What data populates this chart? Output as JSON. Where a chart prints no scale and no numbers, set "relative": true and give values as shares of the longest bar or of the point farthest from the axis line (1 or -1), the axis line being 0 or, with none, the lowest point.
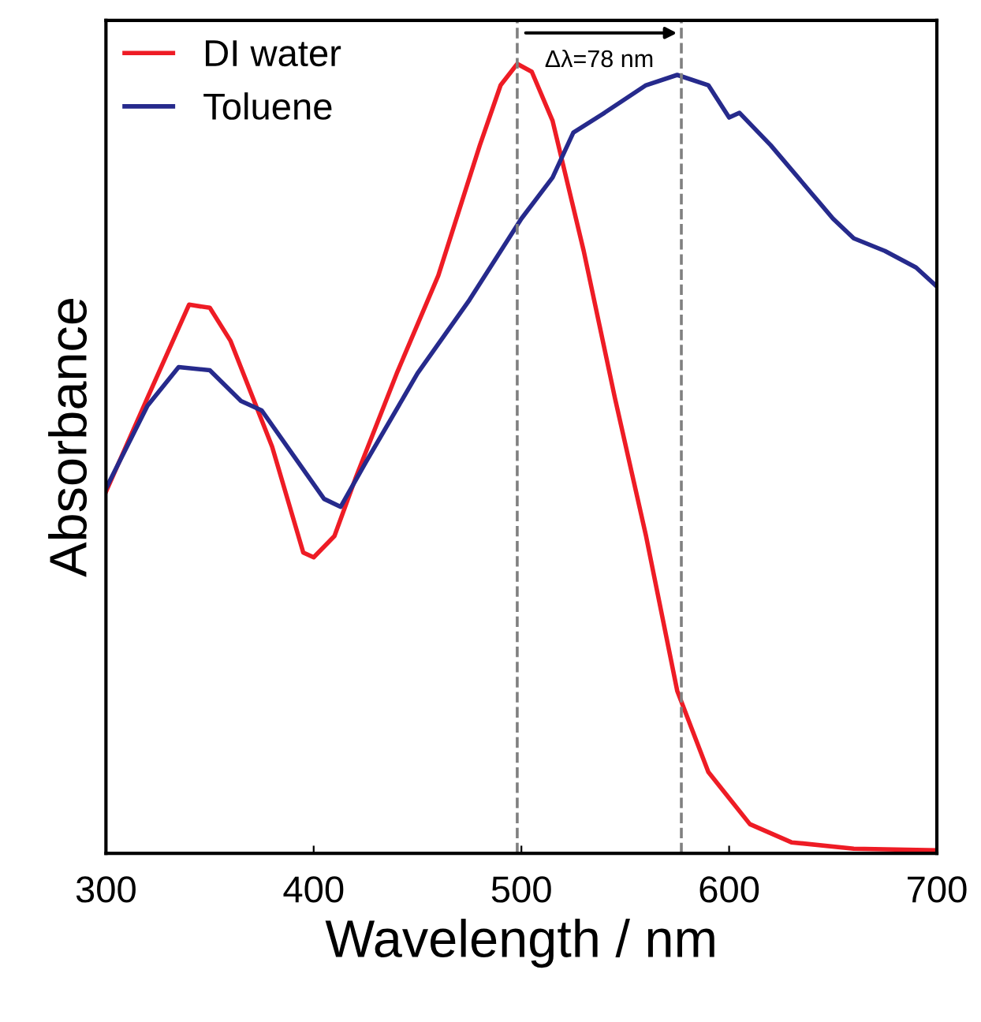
{
  "chart_data": {
    "type": "line",
    "xlabel": "Wavelength / nm",
    "ylabel": "Absorbance",
    "relative": true,
    "xlim": [
      300,
      700
    ],
    "xticks": [
      300,
      400,
      500,
      600,
      700
    ],
    "grid": false,
    "legend": "top left",
    "line_style": "solid",
    "marker": "none",
    "series": [
      {
        "name": "DI water",
        "color": "#ee1c25",
        "x": [
          300,
          320,
          340,
          350,
          360,
          380,
          395,
          400,
          410,
          420,
          440,
          460,
          480,
          490,
          498,
          505,
          515,
          530,
          545,
          560,
          575,
          590,
          610,
          630,
          660,
          700
        ],
        "values": [
          0.458,
          0.577,
          0.695,
          0.691,
          0.649,
          0.515,
          0.381,
          0.375,
          0.402,
          0.474,
          0.608,
          0.732,
          0.897,
          0.973,
          1.0,
          0.99,
          0.928,
          0.763,
          0.577,
          0.402,
          0.206,
          0.103,
          0.037,
          0.014,
          0.006,
          0.004
        ]
      },
      {
        "name": "Toluene",
        "color": "#262a8c",
        "x": [
          300,
          320,
          335,
          350,
          365,
          375,
          390,
          405,
          413,
          425,
          450,
          475,
          500,
          515,
          525,
          540,
          560,
          575,
          590,
          600,
          605,
          620,
          640,
          650,
          660,
          675,
          690,
          700
        ],
        "values": [
          0.462,
          0.567,
          0.616,
          0.612,
          0.573,
          0.561,
          0.505,
          0.449,
          0.439,
          0.495,
          0.608,
          0.701,
          0.804,
          0.856,
          0.913,
          0.938,
          0.973,
          0.986,
          0.973,
          0.932,
          0.938,
          0.897,
          0.835,
          0.804,
          0.779,
          0.763,
          0.742,
          0.718
        ]
      }
    ],
    "ref_lines": [
      {
        "axis": "x",
        "value": 498,
        "color": "#808080",
        "line_style": "dashed"
      },
      {
        "axis": "x",
        "value": 577,
        "color": "#808080",
        "line_style": "dashed"
      }
    ],
    "annotations": [
      "Δλ=78 nm"
    ]
  }
}
